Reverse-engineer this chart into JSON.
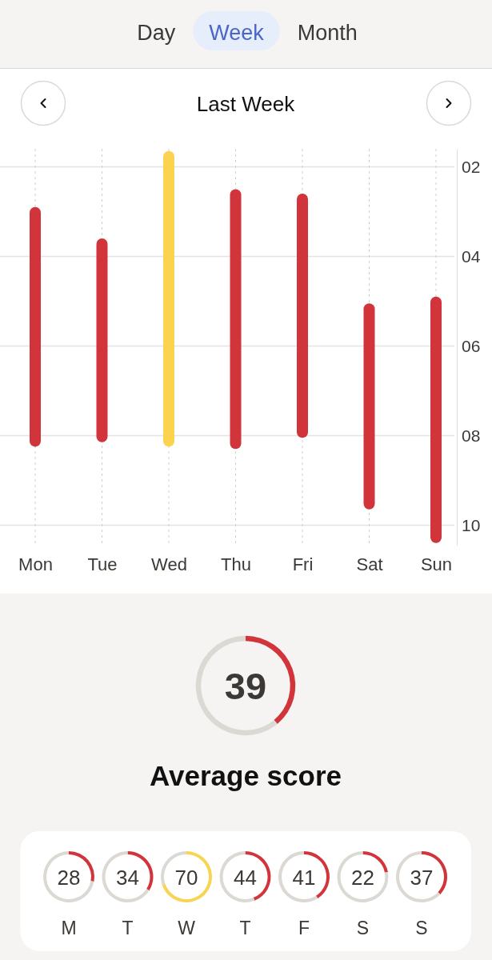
{
  "chart_data": [
    {
      "type": "other",
      "annotations": [
        "Day",
        "Week",
        "Month"
      ]
    },
    {
      "type": "bar",
      "title": "Last Week",
      "categories": [
        "Mon",
        "Tue",
        "Wed",
        "Thu",
        "Fri",
        "Sat",
        "Sun"
      ],
      "base": [
        2.9,
        3.6,
        1.65,
        2.5,
        2.6,
        5.05,
        4.9
      ],
      "values": [
        5.35,
        4.55,
        6.6,
        5.8,
        5.45,
        4.6,
        5.5
      ],
      "colors": [
        "#d1343a",
        "#d1343a",
        "#fcd34f",
        "#d1343a",
        "#d1343a",
        "#d1343a",
        "#d1343a"
      ],
      "ylim": [
        10.45,
        1.6
      ],
      "yticks": [
        {
          "value": 2,
          "label": "02"
        },
        {
          "value": 4,
          "label": "04"
        },
        {
          "value": 6,
          "label": "06"
        },
        {
          "value": 8,
          "label": "08"
        },
        {
          "value": 10,
          "label": "10"
        }
      ],
      "grid": true
    },
    {
      "type": "donut",
      "title": "Average score",
      "categories": [
        null,
        null
      ],
      "values": [
        39,
        61
      ],
      "colors": [
        "#d1343a",
        "#dcd9d4"
      ],
      "annotations": [
        "39"
      ]
    },
    {
      "type": "donut",
      "title": "M",
      "categories": [
        null,
        null
      ],
      "values": [
        28,
        72
      ],
      "colors": [
        "#d1343a",
        "#dcd9d4"
      ],
      "annotations": [
        "28"
      ]
    },
    {
      "type": "donut",
      "title": "T",
      "categories": [
        null,
        null
      ],
      "values": [
        34,
        66
      ],
      "colors": [
        "#d1343a",
        "#dcd9d4"
      ],
      "annotations": [
        "34"
      ]
    },
    {
      "type": "donut",
      "title": "W",
      "categories": [
        null,
        null
      ],
      "values": [
        70,
        30
      ],
      "colors": [
        "#f8d452",
        "#dcd9d4"
      ],
      "annotations": [
        "70"
      ]
    },
    {
      "type": "donut",
      "title": "T",
      "categories": [
        null,
        null
      ],
      "values": [
        44,
        56
      ],
      "colors": [
        "#d1343a",
        "#dcd9d4"
      ],
      "annotations": [
        "44"
      ]
    },
    {
      "type": "donut",
      "title": "F",
      "categories": [
        null,
        null
      ],
      "values": [
        41,
        59
      ],
      "colors": [
        "#d1343a",
        "#dcd9d4"
      ],
      "annotations": [
        "41"
      ]
    },
    {
      "type": "donut",
      "title": "S",
      "categories": [
        null,
        null
      ],
      "values": [
        22,
        78
      ],
      "colors": [
        "#d1343a",
        "#dcd9d4"
      ],
      "annotations": [
        "22"
      ]
    },
    {
      "type": "donut",
      "title": "S",
      "categories": [
        null,
        null
      ],
      "values": [
        37,
        63
      ],
      "colors": [
        "#d1343a",
        "#dcd9d4"
      ],
      "annotations": [
        "37"
      ]
    }
  ]
}
